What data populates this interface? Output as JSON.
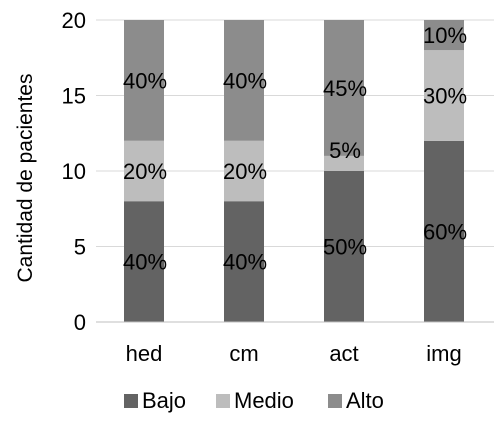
{
  "chart_data": {
    "type": "bar",
    "stacked": true,
    "categories": [
      "hed",
      "cm",
      "act",
      "img"
    ],
    "series": [
      {
        "name": "Bajo",
        "values": [
          8,
          8,
          10,
          12
        ],
        "labels": [
          "40%",
          "40%",
          "50%",
          "60%"
        ],
        "color": "#636363"
      },
      {
        "name": "Medio",
        "values": [
          4,
          4,
          1,
          6
        ],
        "labels": [
          "20%",
          "20%",
          "5%",
          "30%"
        ],
        "color": "#bdbdbd"
      },
      {
        "name": "Alto",
        "values": [
          8,
          8,
          9,
          2
        ],
        "labels": [
          "40%",
          "40%",
          "45%",
          "10%"
        ],
        "color": "#8c8c8c"
      }
    ],
    "ylabel": "Cantidad de pacientes",
    "xlabel": "",
    "ylim": [
      0,
      20
    ],
    "yticks": [
      0,
      5,
      10,
      15,
      20
    ],
    "grid": true,
    "grid_color": "#d9d9d9",
    "legend": "bottom"
  }
}
